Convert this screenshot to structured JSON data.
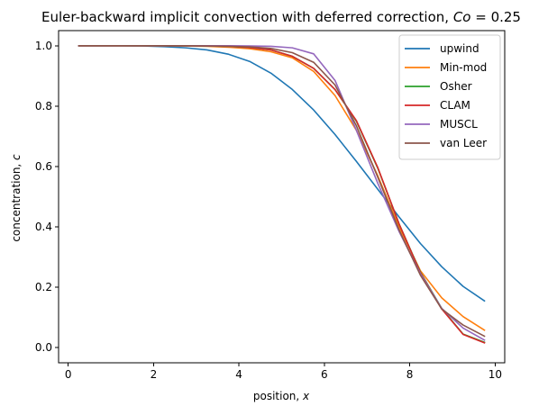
{
  "chart_data": {
    "type": "line",
    "title": "Euler-backward implicit convection with deferred correction, Co = 0.25",
    "title_parts": {
      "prefix": "Euler-backward implicit convection with deferred correction, ",
      "italic": "Co",
      "suffix": " =  0.25"
    },
    "xlabel": "position, x",
    "xlabel_parts": {
      "prefix": "position, ",
      "italic": "x"
    },
    "ylabel": "concentration, c",
    "ylabel_parts": {
      "prefix": "concentration, ",
      "italic": "c"
    },
    "xlim": [
      -0.225,
      10.225
    ],
    "ylim": [
      -0.05,
      1.05
    ],
    "xticks": [
      0,
      2,
      4,
      6,
      8,
      10
    ],
    "xtick_labels": [
      "0",
      "2",
      "4",
      "6",
      "8",
      "10"
    ],
    "yticks": [
      0.0,
      0.2,
      0.4,
      0.6,
      0.8,
      1.0
    ],
    "ytick_labels": [
      "0.0",
      "0.2",
      "0.4",
      "0.6",
      "0.8",
      "1.0"
    ],
    "grid": false,
    "legend_position": "top-right",
    "x": [
      0.25,
      0.75,
      1.25,
      1.75,
      2.25,
      2.75,
      3.25,
      3.75,
      4.25,
      4.75,
      5.25,
      5.75,
      6.25,
      6.75,
      7.25,
      7.75,
      8.25,
      8.75,
      9.25,
      9.75
    ],
    "series": [
      {
        "name": "upwind",
        "color": "#1f77b4",
        "values": [
          1.0,
          1.0,
          1.0,
          0.999,
          0.997,
          0.993,
          0.986,
          0.972,
          0.948,
          0.909,
          0.855,
          0.787,
          0.706,
          0.617,
          0.525,
          0.433,
          0.345,
          0.268,
          0.203,
          0.155
        ]
      },
      {
        "name": "Min-mod",
        "color": "#ff7f0e",
        "values": [
          1.0,
          1.0,
          1.0,
          1.0,
          1.0,
          0.999,
          0.998,
          0.995,
          0.99,
          0.98,
          0.96,
          0.915,
          0.835,
          0.72,
          0.57,
          0.4,
          0.255,
          0.165,
          0.103,
          0.058
        ]
      },
      {
        "name": "Osher",
        "color": "#2ca02c",
        "values": [
          1.0,
          1.0,
          1.0,
          1.0,
          1.0,
          1.0,
          0.999,
          0.998,
          0.994,
          0.986,
          0.965,
          0.925,
          0.855,
          0.75,
          0.595,
          0.41,
          0.25,
          0.13,
          0.045,
          0.018
        ]
      },
      {
        "name": "CLAM",
        "color": "#d62728",
        "values": [
          1.0,
          1.0,
          1.0,
          1.0,
          1.0,
          1.0,
          0.999,
          0.998,
          0.994,
          0.986,
          0.965,
          0.925,
          0.855,
          0.752,
          0.597,
          0.41,
          0.248,
          0.128,
          0.044,
          0.016
        ]
      },
      {
        "name": "MUSCL",
        "color": "#9467bd",
        "values": [
          1.0,
          1.0,
          1.0,
          1.0,
          1.0,
          1.0,
          1.0,
          1.0,
          0.999,
          0.998,
          0.993,
          0.973,
          0.885,
          0.72,
          0.545,
          0.385,
          0.245,
          0.13,
          0.065,
          0.025
        ]
      },
      {
        "name": "van Leer",
        "color": "#8c564b",
        "values": [
          1.0,
          1.0,
          1.0,
          1.0,
          1.0,
          1.0,
          0.999,
          0.998,
          0.996,
          0.991,
          0.977,
          0.945,
          0.87,
          0.735,
          0.565,
          0.39,
          0.24,
          0.128,
          0.075,
          0.038
        ]
      }
    ]
  }
}
